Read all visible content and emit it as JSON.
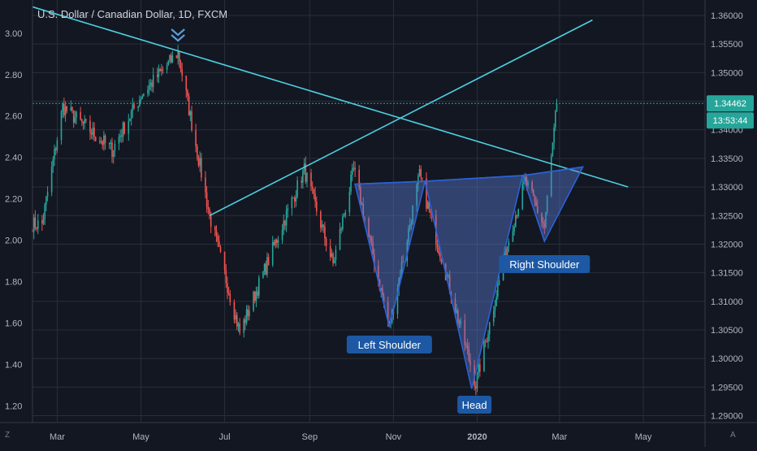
{
  "header": {
    "title": "U.S. Dollar / Canadian Dollar, 1D, FXCM"
  },
  "corner": {
    "left": "Z",
    "right": "A"
  },
  "colors": {
    "background": "#131722",
    "grid": "#2a2e39",
    "axis_text": "#b2b5be",
    "up": "#26a69a",
    "down": "#ef5350",
    "trendline": "#4dd0e1",
    "pattern_fill": "#5b7fd8",
    "pattern_stroke": "#2a62d6",
    "label_bg": "#1c58a4",
    "price_tag": "#26a69a"
  },
  "chart_data": {
    "type": "candlestick",
    "title": "U.S. Dollar / Canadian Dollar, 1D, FXCM",
    "x_ticks": [
      "Mar",
      "May",
      "Jul",
      "Sep",
      "Nov",
      "2020",
      "Mar",
      "May"
    ],
    "x_range": [
      "2019-02-11",
      "2020-06-15"
    ],
    "left_axis": {
      "ticks": [
        "3.00",
        "2.80",
        "2.60",
        "2.40",
        "2.20",
        "2.00",
        "1.80",
        "1.60",
        "1.40",
        "1.20"
      ],
      "range": [
        1.12,
        3.16
      ]
    },
    "right_axis": {
      "ticks": [
        "1.36000",
        "1.35500",
        "1.35000",
        "1.34500",
        "1.34000",
        "1.33500",
        "1.33000",
        "1.32500",
        "1.32000",
        "1.31500",
        "1.31000",
        "1.30500",
        "1.30000",
        "1.29500",
        "1.29000"
      ],
      "range": [
        1.2888,
        1.3627
      ]
    },
    "grid": true,
    "last_price": "1.34462",
    "countdown": "13:53:44",
    "key_closes": [
      {
        "date": "2019-02-18",
        "value": 1.3235
      },
      {
        "date": "2019-03-05",
        "value": 1.344
      },
      {
        "date": "2019-04-10",
        "value": 1.3365
      },
      {
        "date": "2019-05-01",
        "value": 1.346
      },
      {
        "date": "2019-05-28",
        "value": 1.3535
      },
      {
        "date": "2019-06-20",
        "value": 1.325
      },
      {
        "date": "2019-07-12",
        "value": 1.3045
      },
      {
        "date": "2019-08-28",
        "value": 1.333
      },
      {
        "date": "2019-09-18",
        "value": 1.3165
      },
      {
        "date": "2019-10-03",
        "value": 1.333
      },
      {
        "date": "2019-10-29",
        "value": 1.3055
      },
      {
        "date": "2019-11-20",
        "value": 1.332
      },
      {
        "date": "2019-12-31",
        "value": 1.2955
      },
      {
        "date": "2020-01-25",
        "value": 1.322
      },
      {
        "date": "2020-02-05",
        "value": 1.331
      },
      {
        "date": "2020-02-19",
        "value": 1.323
      },
      {
        "date": "2020-02-28",
        "value": 1.3446
      }
    ],
    "annotations": [
      "Left Shoulder",
      "Head",
      "Right Shoulder"
    ]
  }
}
